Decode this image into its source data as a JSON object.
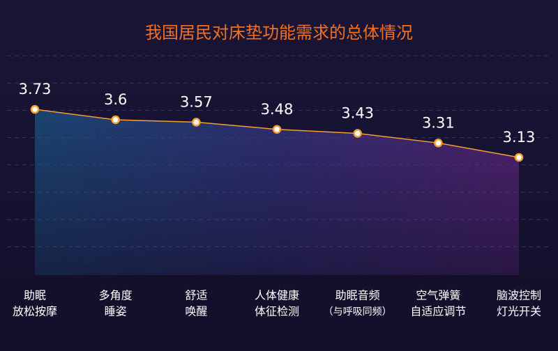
{
  "chart_data": {
    "type": "area_line",
    "title": "我国居民对床垫功能需求的总体情况",
    "categories": [
      [
        "助眠",
        "放松按摩"
      ],
      [
        "多角度",
        "睡姿"
      ],
      [
        "舒适",
        "唤醒"
      ],
      [
        "人体健康",
        "体征检测"
      ],
      [
        "助眠音频",
        "（与呼吸同频）"
      ],
      [
        "空气弹簧",
        "自适应调节"
      ],
      [
        "脑波控制",
        "灯光开关"
      ]
    ],
    "values": [
      3.73,
      3.6,
      3.57,
      3.48,
      3.43,
      3.31,
      3.13
    ],
    "color": "#f5a030",
    "ylim": [
      1.66,
      4.4
    ],
    "grid": true
  }
}
